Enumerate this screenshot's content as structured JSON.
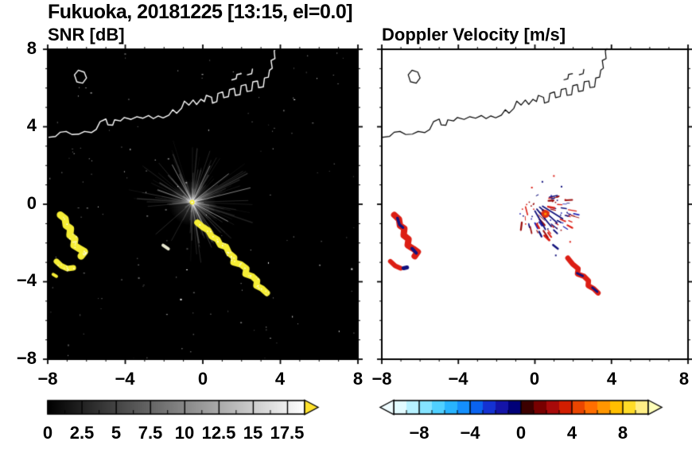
{
  "figure": {
    "title": "Fukuoka, 20181225 [13:15, el=0.0]"
  },
  "panels": {
    "snr": {
      "title": "SNR [dB]",
      "xticks": [
        "−8",
        "−4",
        "0",
        "4",
        "8"
      ],
      "yticks": [
        "8",
        "4",
        "0",
        "−4",
        "−8"
      ],
      "colorbar": {
        "labels": [
          "0",
          "2.5",
          "5",
          "7.5",
          "10",
          "12.5",
          "15",
          "17.5"
        ]
      }
    },
    "doppler": {
      "title": "Doppler Velocity [m/s]",
      "xticks": [
        "−8",
        "−4",
        "0",
        "4",
        "8"
      ],
      "colorbar": {
        "labels": [
          "−8",
          "−4",
          "0",
          "4",
          "8"
        ]
      }
    }
  },
  "chart_data": [
    {
      "type": "heatmap",
      "title": "SNR [dB]",
      "xlim": [
        -8,
        8
      ],
      "ylim": [
        -8,
        8
      ],
      "xticks": [
        -8,
        -4,
        0,
        4,
        8
      ],
      "yticks": [
        -8,
        -4,
        0,
        4,
        8
      ],
      "background": "#000000",
      "coastline_color": "#ffffff",
      "echo_color": "#f6ee35",
      "radar_center": [
        -0.55,
        0.1
      ],
      "noise_speckles": 135,
      "rays": {
        "n": 235,
        "min_len": 0.35,
        "max_len": 3.4,
        "dark_sector": [
          195,
          262
        ],
        "long_rays": [
          {
            "angle": 14,
            "len": 3.1
          },
          {
            "angle": 38,
            "len": 2.4
          },
          {
            "angle": 64,
            "len": 2.1
          },
          {
            "angle": 118,
            "len": 2.2
          },
          {
            "angle": 160,
            "len": 1.9
          },
          {
            "angle": -28,
            "len": 2.1
          },
          {
            "angle": -64,
            "len": 1.8
          }
        ]
      },
      "echoes": [
        {
          "points": [
            [
              -7.35,
              -0.55
            ],
            [
              -7.1,
              -0.75
            ],
            [
              -7.05,
              -1.1
            ],
            [
              -6.82,
              -1.25
            ],
            [
              -6.86,
              -1.6
            ],
            [
              -6.6,
              -1.8
            ],
            [
              -6.65,
              -2.12
            ],
            [
              -6.35,
              -2.3
            ],
            [
              -6.1,
              -2.45
            ],
            [
              -6.28,
              -2.68
            ]
          ],
          "width": 9,
          "speckle": true
        },
        {
          "points": [
            [
              -7.55,
              -2.95
            ],
            [
              -7.3,
              -3.18
            ],
            [
              -7.0,
              -3.32
            ],
            [
              -6.68,
              -3.28
            ]
          ],
          "width": 7,
          "speckle": true
        },
        {
          "points": [
            [
              -7.72,
              -3.62
            ],
            [
              -7.55,
              -3.72
            ]
          ],
          "width": 4
        },
        {
          "points": [
            [
              -0.28,
              -0.95
            ],
            [
              0.0,
              -1.18
            ],
            [
              0.28,
              -1.35
            ],
            [
              0.45,
              -1.65
            ],
            [
              0.75,
              -1.82
            ],
            [
              0.9,
              -2.1
            ],
            [
              1.2,
              -2.2
            ],
            [
              1.35,
              -2.52
            ],
            [
              1.62,
              -2.75
            ],
            [
              1.58,
              -3.0
            ],
            [
              1.95,
              -3.1
            ],
            [
              2.25,
              -3.32
            ],
            [
              2.2,
              -3.6
            ],
            [
              2.55,
              -3.72
            ],
            [
              2.8,
              -3.95
            ],
            [
              2.76,
              -4.2
            ],
            [
              3.05,
              -4.35
            ],
            [
              3.3,
              -4.58
            ]
          ],
          "width": 8,
          "speckle": true
        },
        {
          "points": [
            [
              -2.05,
              -2.12
            ],
            [
              -1.78,
              -2.3
            ]
          ],
          "width": 4,
          "color": "#e8e8d0"
        }
      ],
      "coastline": [
        {
          "points": [
            [
              -8,
              3.45
            ],
            [
              -7.6,
              3.5
            ],
            [
              -7.35,
              3.72
            ],
            [
              -7.05,
              3.76
            ],
            [
              -6.75,
              3.6
            ],
            [
              -6.4,
              3.62
            ],
            [
              -6.1,
              3.76
            ],
            [
              -5.75,
              3.7
            ],
            [
              -5.5,
              3.86
            ],
            [
              -5.3,
              4.26
            ],
            [
              -5.0,
              4.4
            ],
            [
              -4.9,
              4.1
            ],
            [
              -4.65,
              4.08
            ],
            [
              -4.55,
              4.36
            ],
            [
              -4.25,
              4.3
            ],
            [
              -4.05,
              4.48
            ],
            [
              -3.7,
              4.38
            ],
            [
              -3.4,
              4.52
            ],
            [
              -3.1,
              4.44
            ],
            [
              -2.8,
              4.58
            ],
            [
              -2.55,
              4.42
            ],
            [
              -2.3,
              4.56
            ],
            [
              -2.05,
              4.46
            ],
            [
              -1.75,
              4.6
            ],
            [
              -1.55,
              4.88
            ],
            [
              -1.35,
              4.7
            ],
            [
              -1.1,
              4.95
            ],
            [
              -0.95,
              5.32
            ],
            [
              -0.72,
              5.12
            ],
            [
              -0.5,
              5.38
            ],
            [
              -0.32,
              5.15
            ],
            [
              -0.1,
              5.42
            ],
            [
              0.08,
              5.3
            ],
            [
              0.18,
              5.62
            ],
            [
              0.45,
              5.52
            ],
            [
              0.5,
              5.22
            ],
            [
              0.72,
              5.3
            ],
            [
              0.78,
              5.72
            ],
            [
              1.02,
              5.8
            ],
            [
              1.08,
              5.5
            ],
            [
              1.32,
              5.56
            ],
            [
              1.38,
              5.92
            ],
            [
              1.62,
              5.98
            ],
            [
              1.68,
              5.62
            ],
            [
              1.92,
              5.66
            ],
            [
              1.98,
              6.12
            ],
            [
              2.22,
              6.18
            ],
            [
              2.28,
              5.82
            ],
            [
              2.52,
              5.86
            ],
            [
              2.58,
              6.32
            ],
            [
              2.82,
              6.36
            ],
            [
              2.88,
              6.02
            ],
            [
              3.12,
              6.06
            ],
            [
              3.18,
              6.52
            ],
            [
              3.38,
              6.56
            ],
            [
              3.44,
              6.92
            ],
            [
              3.58,
              7.02
            ],
            [
              3.52,
              7.42
            ],
            [
              3.72,
              7.52
            ],
            [
              3.68,
              7.92
            ],
            [
              3.78,
              8.05
            ]
          ]
        },
        {
          "points": [
            [
              -6.62,
              6.68
            ],
            [
              -6.42,
              6.92
            ],
            [
              -6.12,
              6.82
            ],
            [
              -6.0,
              6.52
            ],
            [
              -6.2,
              6.25
            ],
            [
              -6.5,
              6.32
            ]
          ],
          "closed": true
        },
        {
          "points": [
            [
              1.5,
              6.42
            ],
            [
              1.72,
              6.48
            ],
            [
              1.76,
              6.7
            ],
            [
              1.98,
              6.74
            ]
          ]
        },
        {
          "points": [
            [
              2.3,
              6.68
            ],
            [
              2.52,
              6.74
            ],
            [
              2.56,
              6.98
            ]
          ]
        }
      ],
      "colorbar": {
        "min": 0,
        "max": 17.5,
        "extend_max": 18.75,
        "ticks": [
          0,
          2.5,
          5,
          7.5,
          10,
          12.5,
          15,
          17.5
        ],
        "minor_step": 1.25,
        "colormap": "grayscale",
        "over_color": "#ffe22d"
      }
    },
    {
      "type": "heatmap",
      "title": "Doppler Velocity [m/s]",
      "xlim": [
        -8,
        8
      ],
      "ylim": [
        -8,
        8
      ],
      "xticks": [
        -8,
        -4,
        0,
        4,
        8
      ],
      "yticks": [
        -8,
        -4,
        0,
        4,
        8
      ],
      "background": "#ffffff",
      "coastline_color": "#000000",
      "echoes": [
        {
          "points": [
            [
              -7.35,
              -0.55
            ],
            [
              -7.1,
              -0.78
            ],
            [
              -7.05,
              -1.1
            ],
            [
              -6.82,
              -1.25
            ],
            [
              -6.86,
              -1.6
            ],
            [
              -6.6,
              -1.8
            ],
            [
              -6.65,
              -2.12
            ],
            [
              -6.35,
              -2.3
            ],
            [
              -6.12,
              -2.46
            ],
            [
              -6.28,
              -2.68
            ]
          ],
          "width": 8,
          "color": "#dc1e14"
        },
        {
          "points": [
            [
              -7.18,
              -0.72
            ],
            [
              -7.08,
              -1.05
            ],
            [
              -6.9,
              -1.2
            ]
          ],
          "width": 3.5,
          "color": "#12127d"
        },
        {
          "points": [
            [
              -6.42,
              -2.28
            ],
            [
              -6.2,
              -2.52
            ]
          ],
          "width": 4,
          "color": "#12127d"
        },
        {
          "points": [
            [
              -7.55,
              -2.95
            ],
            [
              -7.3,
              -3.18
            ],
            [
              -7.02,
              -3.3
            ]
          ],
          "width": 6,
          "color": "#dc1e14"
        },
        {
          "points": [
            [
              -6.86,
              -3.3
            ],
            [
              -6.68,
              -3.26
            ]
          ],
          "width": 5,
          "color": "#12127d"
        },
        {
          "points": [
            [
              1.72,
              -2.78
            ],
            [
              1.98,
              -3.1
            ],
            [
              2.26,
              -3.32
            ],
            [
              2.22,
              -3.6
            ],
            [
              2.56,
              -3.72
            ],
            [
              2.8,
              -3.95
            ],
            [
              2.78,
              -4.2
            ],
            [
              3.06,
              -4.35
            ],
            [
              3.3,
              -4.58
            ]
          ],
          "width": 6.5,
          "color": "#dc1e14"
        },
        {
          "points": [
            [
              2.2,
              -3.56
            ],
            [
              2.5,
              -3.7
            ]
          ],
          "width": 2.8,
          "color": "#12127d"
        },
        {
          "points": [
            [
              3.0,
              -4.3
            ],
            [
              3.26,
              -4.52
            ]
          ],
          "width": 2.8,
          "color": "#12127d"
        },
        {
          "points": [
            [
              0.5,
              -1.62
            ],
            [
              0.75,
              -1.85
            ]
          ],
          "width": 3,
          "color": "#dc1e14"
        },
        {
          "points": [
            [
              0.95,
              -2.1
            ],
            [
              1.2,
              -2.3
            ]
          ],
          "width": 2.5,
          "color": "#12127d"
        }
      ],
      "cluster": {
        "center": [
          0.6,
          -0.5
        ],
        "radius": 1.15,
        "n": 85,
        "colors": [
          "#12127d",
          "#2020b4",
          "#dc1e14",
          "#9b0f0f"
        ],
        "fan": [
          [
            [
              0.1,
              -0.25
            ],
            [
              0.85,
              -1.15
            ]
          ],
          [
            [
              0.25,
              -0.15
            ],
            [
              1.15,
              -0.95
            ]
          ],
          [
            [
              0.0,
              -0.35
            ],
            [
              0.55,
              -1.3
            ]
          ],
          [
            [
              0.4,
              -0.1
            ],
            [
              1.45,
              -0.75
            ]
          ]
        ],
        "core": {
          "center": [
            0.55,
            -0.5
          ],
          "radius": 5,
          "color": "#e03010",
          "dot": "#ff9000"
        }
      },
      "dots": [
        {
          "p": [
            0.35,
            1.2
          ],
          "c": "#12127d"
        },
        {
          "p": [
            0.95,
            1.5
          ],
          "c": "#dc1e14"
        },
        {
          "p": [
            1.35,
            0.95
          ],
          "c": "#12127d"
        },
        {
          "p": [
            -0.2,
            0.9
          ],
          "c": "#dc1e14"
        },
        {
          "p": [
            1.8,
            -1.9
          ],
          "c": "#dc1e14"
        },
        {
          "p": [
            1.05,
            -2.6
          ],
          "c": "#12127d"
        }
      ],
      "colorbar": {
        "min": -10,
        "max": 10,
        "ticks": [
          -8,
          -4,
          0,
          4,
          8
        ],
        "minor_step": 1,
        "colors": [
          "#e2fbff",
          "#b6f1ff",
          "#84e3ff",
          "#50d0ff",
          "#28b4ff",
          "#148ffd",
          "#0a63ef",
          "#1432d2",
          "#1414a8",
          "#000078",
          "#3c0000",
          "#780000",
          "#a80a0a",
          "#d21e00",
          "#ea4600",
          "#ff6e00",
          "#ff9600",
          "#ffbe00",
          "#ffdc28",
          "#ffee86"
        ],
        "under_color": "#effcff",
        "over_color": "#ffffb9"
      }
    }
  ]
}
